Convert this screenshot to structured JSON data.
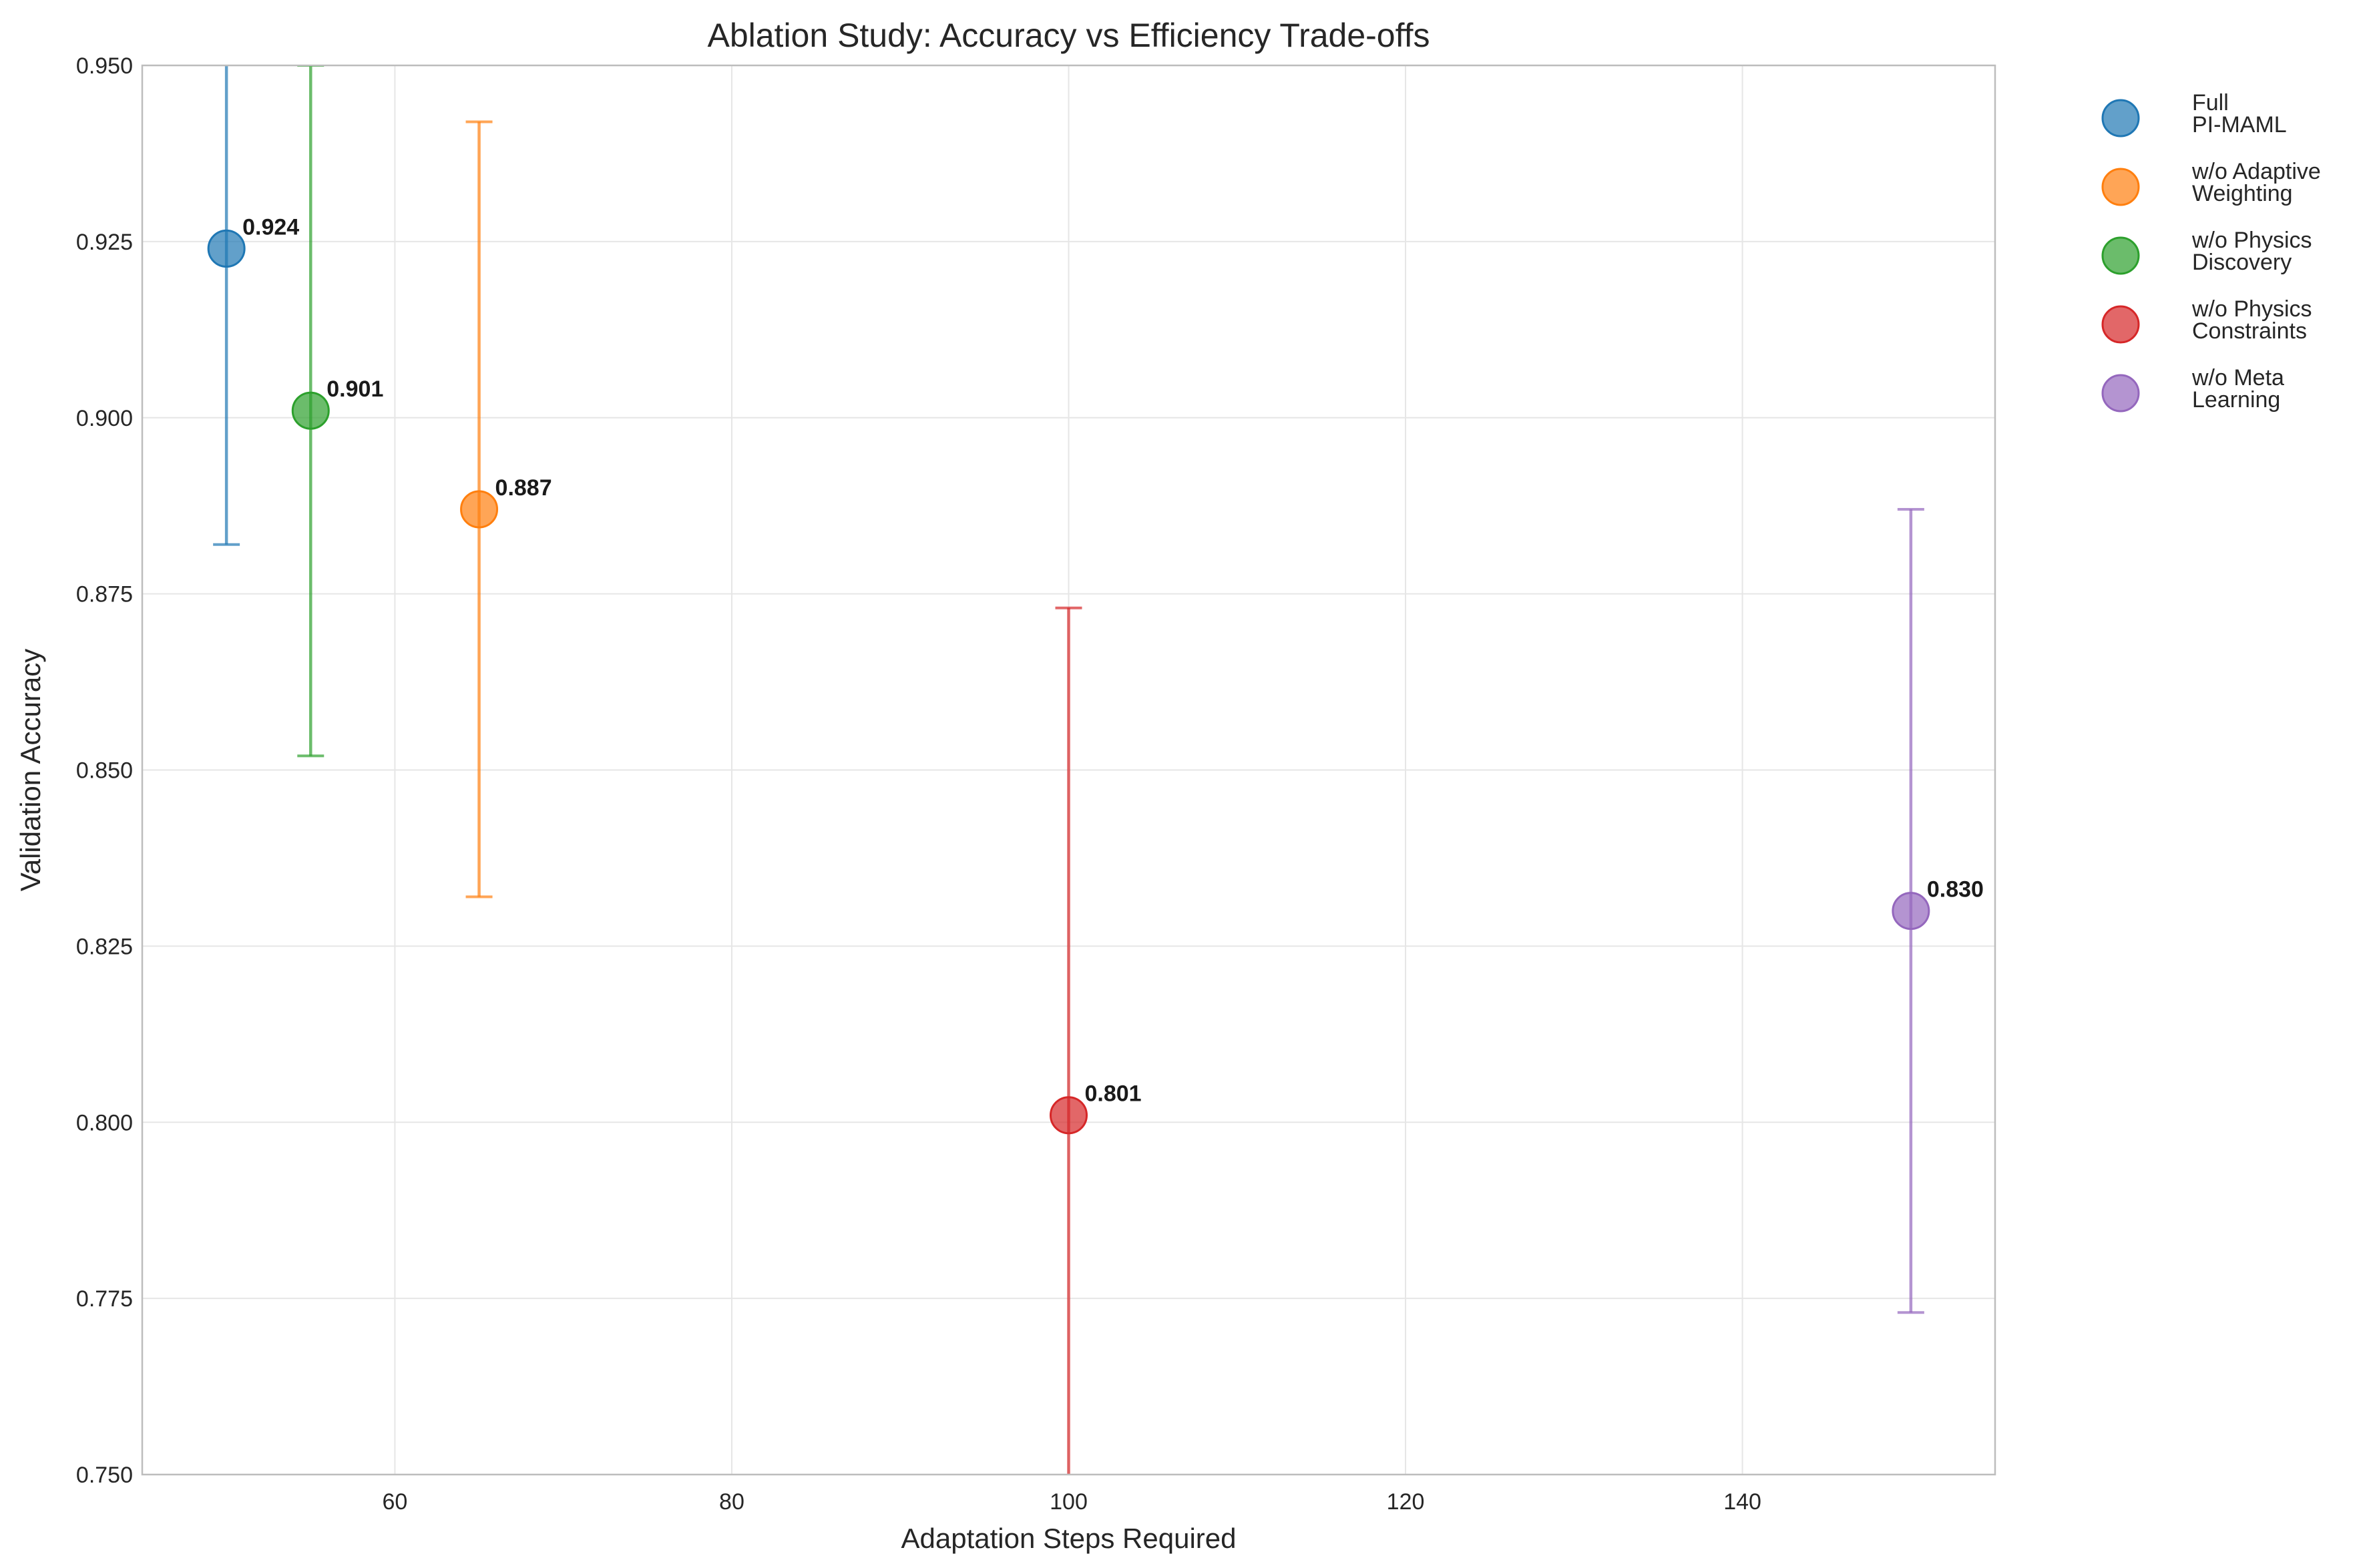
{
  "chart_data": {
    "type": "scatter",
    "title": "Ablation Study: Accuracy vs Efficiency Trade-offs",
    "xlabel": "Adaptation Steps Required",
    "ylabel": "Validation Accuracy",
    "xlim": [
      45,
      155
    ],
    "ylim": [
      0.75,
      0.95
    ],
    "xticks": [
      60,
      80,
      100,
      120,
      140
    ],
    "yticks": [
      0.75,
      0.775,
      0.8,
      0.825,
      0.85,
      0.875,
      0.9,
      0.925,
      0.95
    ],
    "ytick_labels": [
      "0.750",
      "0.775",
      "0.800",
      "0.825",
      "0.850",
      "0.875",
      "0.900",
      "0.925",
      "0.950"
    ],
    "grid": true,
    "legend_position": "outside-top-right",
    "error_bars": true,
    "series": [
      {
        "name": [
          "Full",
          "PI-MAML"
        ],
        "color": "#1f77b4",
        "x": 50,
        "y": 0.924,
        "err": 0.042,
        "label": "0.924"
      },
      {
        "name": [
          "w/o Adaptive",
          "Weighting"
        ],
        "color": "#ff7f0e",
        "x": 65,
        "y": 0.887,
        "err": 0.055,
        "label": "0.887"
      },
      {
        "name": [
          "w/o Physics",
          "Discovery"
        ],
        "color": "#2ca02c",
        "x": 55,
        "y": 0.901,
        "err": 0.049,
        "label": "0.901"
      },
      {
        "name": [
          "w/o Physics",
          "Constraints"
        ],
        "color": "#d62728",
        "x": 100,
        "y": 0.801,
        "err": 0.072,
        "label": "0.801"
      },
      {
        "name": [
          "w/o Meta",
          "Learning"
        ],
        "color": "#9467bd",
        "x": 150,
        "y": 0.83,
        "err": 0.057,
        "label": "0.830"
      }
    ]
  }
}
